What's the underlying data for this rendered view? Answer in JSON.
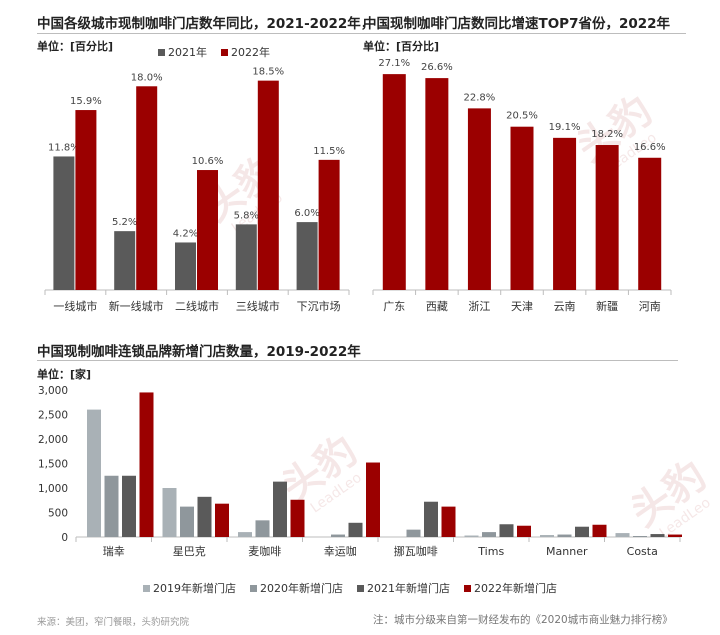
{
  "colors": {
    "dark_red": "#9b0000",
    "dark_gray": "#5a5a5a",
    "gray2019": "#a9b1b6",
    "gray2020": "#8f979c",
    "gray2021": "#5a5a5a",
    "red2022": "#9b0000",
    "axis": "#bdbdbd"
  },
  "header": {
    "left_title": "中国各级城市现制咖啡门店数年同比，2021-2022年",
    "right_title": "中国现制咖啡门店数同比增速TOP7省份，2022年",
    "bottom_title": "中国现制咖啡连锁品牌新增门店数量，2019-2022年"
  },
  "units": {
    "left": "单位：[百分比]",
    "right": "单位：[百分比]",
    "bottom": "单位：[家]"
  },
  "watermark": {
    "text": "头豹",
    "sub": "LeadLeo"
  },
  "footer": {
    "source": "来源：美团，窄门餐眼，头豹研究院",
    "note": "注：城市分级来自第一财经发布的《2020城市商业魅力排行榜》"
  },
  "chart_data": [
    {
      "type": "bar",
      "title": "中国各级城市现制咖啡门店数年同比，2021-2022年",
      "ylabel": "单位：[百分比]",
      "categories": [
        "一线城市",
        "新一线城市",
        "二线城市",
        "三线城市",
        "下沉市场"
      ],
      "series": [
        {
          "name": "2021年",
          "values": [
            11.8,
            5.2,
            4.2,
            5.8,
            6.0
          ],
          "labels": [
            "11.8%",
            "5.2%",
            "4.2%",
            "5.8%",
            "6.0%"
          ]
        },
        {
          "name": "2022年",
          "values": [
            15.9,
            18.0,
            10.6,
            18.5,
            11.5
          ],
          "labels": [
            "15.9%",
            "18.0%",
            "10.6%",
            "18.5%",
            "11.5%"
          ]
        }
      ],
      "ylim": [
        0,
        20.5
      ],
      "legend": "top-center",
      "grid": false
    },
    {
      "type": "bar",
      "title": "中国现制咖啡门店数同比增速TOP7省份，2022年",
      "ylabel": "单位：[百分比]",
      "categories": [
        "广东",
        "西藏",
        "浙江",
        "天津",
        "云南",
        "新疆",
        "河南"
      ],
      "values": [
        27.1,
        26.6,
        22.8,
        20.5,
        19.1,
        18.2,
        16.6
      ],
      "labels": [
        "27.1%",
        "26.6%",
        "22.8%",
        "20.5%",
        "19.1%",
        "18.2%",
        "16.6%"
      ],
      "ylim": [
        0,
        29.5
      ],
      "grid": false
    },
    {
      "type": "bar",
      "title": "中国现制咖啡连锁品牌新增门店数量，2019-2022年",
      "ylabel": "单位：[家]",
      "categories": [
        "瑞幸",
        "星巴克",
        "麦咖啡",
        "幸运咖",
        "挪瓦咖啡",
        "Tims",
        "Manner",
        "Costa"
      ],
      "series": [
        {
          "name": "2019年新增门店",
          "values": [
            2600,
            1000,
            100,
            0,
            0,
            30,
            40,
            80
          ]
        },
        {
          "name": "2020年新增门店",
          "values": [
            1250,
            620,
            340,
            50,
            150,
            100,
            50,
            10
          ]
        },
        {
          "name": "2021年新增门店",
          "values": [
            1250,
            820,
            1130,
            290,
            720,
            260,
            210,
            60
          ]
        },
        {
          "name": "2022年新增门店",
          "values": [
            2950,
            680,
            760,
            1520,
            620,
            230,
            250,
            50
          ]
        }
      ],
      "yticks": [
        "0",
        "500",
        "1,000",
        "1,500",
        "2,000",
        "2,500",
        "3,000"
      ],
      "ylim": [
        0,
        3000
      ],
      "legend": "bottom",
      "grid": false
    }
  ]
}
